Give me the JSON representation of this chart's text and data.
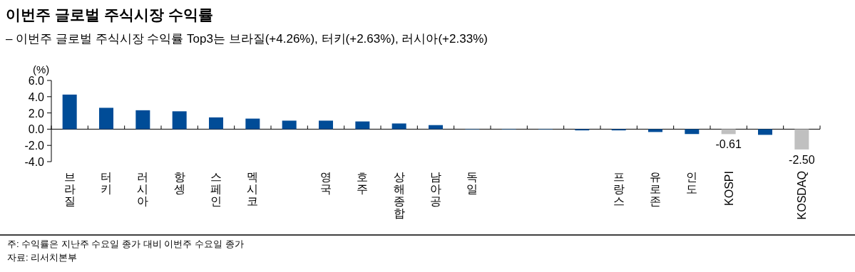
{
  "chart_data": {
    "type": "bar",
    "title": "이번주 글로벌 주식시장 수익률",
    "subtitle": "– 이번주 글로벌 주식시장 수익률 Top3는 브라질(+4.26%), 터키(+2.63%), 러시아(+2.33%)",
    "ylabel": "(%)",
    "categories": [
      "브라질",
      "터키",
      "러시아",
      "항셍",
      "스페인",
      "멕시코",
      null,
      "영국",
      "호주",
      "상해종합",
      "남아공",
      "독일",
      null,
      null,
      null,
      "프랑스",
      "유로존",
      "인도",
      "KOSPI",
      null,
      "KOSDAQ"
    ],
    "values": [
      4.26,
      2.63,
      2.33,
      2.2,
      1.45,
      1.3,
      1.05,
      1.05,
      0.95,
      0.7,
      0.5,
      -0.05,
      -0.05,
      -0.05,
      -0.15,
      -0.15,
      -0.35,
      -0.6,
      -0.61,
      -0.7,
      -2.5
    ],
    "colors": [
      "#004c97",
      "#004c97",
      "#004c97",
      "#004c97",
      "#004c97",
      "#004c97",
      "#004c97",
      "#004c97",
      "#004c97",
      "#004c97",
      "#004c97",
      "#004c97",
      "#004c97",
      "#004c97",
      "#004c97",
      "#004c97",
      "#004c97",
      "#004c97",
      "#c0c0c0",
      "#004c97",
      "#c0c0c0"
    ],
    "value_labels": [
      null,
      null,
      null,
      null,
      null,
      null,
      null,
      null,
      null,
      null,
      null,
      null,
      null,
      null,
      null,
      null,
      null,
      null,
      "-0.61",
      null,
      "-2.50"
    ],
    "ylim": [
      -4,
      6
    ],
    "yticks": [
      {
        "value": 6,
        "label": "6.0"
      },
      {
        "value": 4,
        "label": "4.0"
      },
      {
        "value": 2,
        "label": "2.0"
      },
      {
        "value": 0,
        "label": "0.0"
      },
      {
        "value": -2,
        "label": "-2.0"
      },
      {
        "value": -4,
        "label": "-4.0"
      }
    ],
    "annotations": [
      "주: 수익률은 지난주 수요일 종가 대비 이번주 수요일 종가",
      "자료: 리서치본부"
    ]
  }
}
